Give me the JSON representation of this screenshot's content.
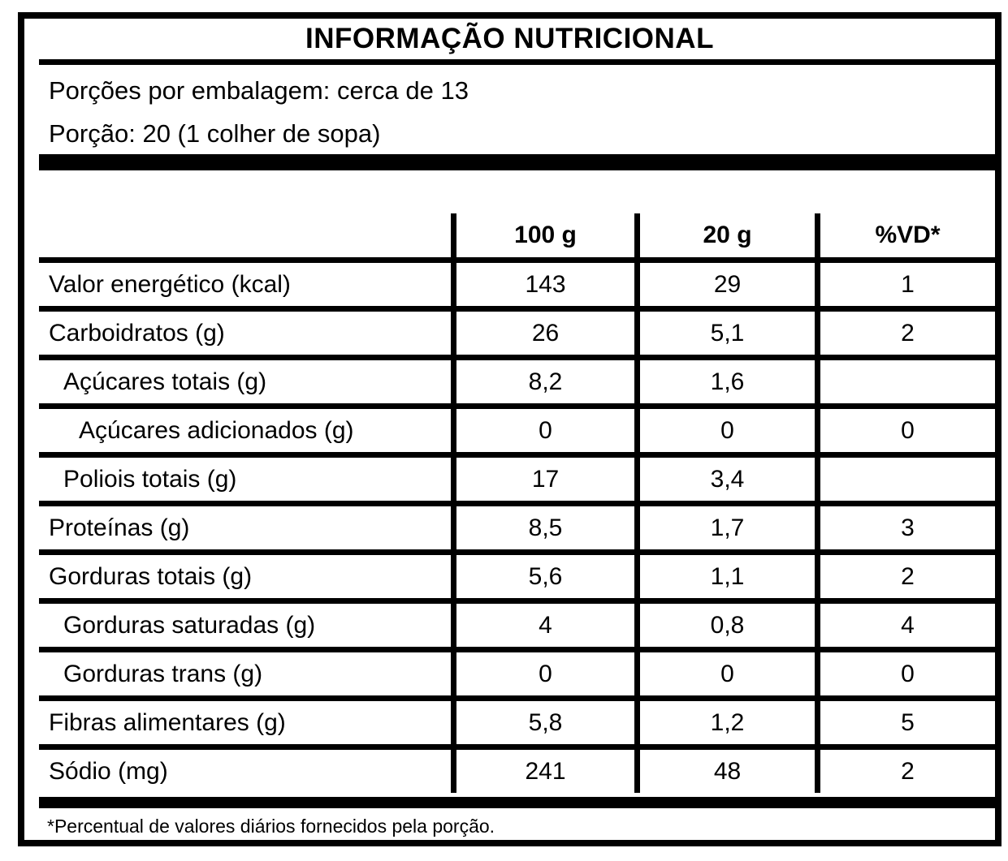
{
  "label": {
    "title": "INFORMAÇÃO NUTRICIONAL",
    "servings_line": "Porções por embalagem: cerca de 13",
    "portion_line": "Porção: 20 (1 colher de sopa)",
    "footnote": "*Percentual de valores diários fornecidos pela porção.",
    "columns": [
      "100 g",
      "20 g",
      "%VD*"
    ],
    "rows": [
      {
        "label": "Valor energético (kcal)",
        "per100": "143",
        "per20": "29",
        "vd": "1",
        "indent": 0
      },
      {
        "label": "Carboidratos (g)",
        "per100": "26",
        "per20": "5,1",
        "vd": "2",
        "indent": 0
      },
      {
        "label": "Açúcares totais (g)",
        "per100": "8,2",
        "per20": "1,6",
        "vd": "",
        "indent": 1
      },
      {
        "label": "Açúcares adicionados (g)",
        "per100": "0",
        "per20": "0",
        "vd": "0",
        "indent": 2
      },
      {
        "label": "Poliois totais (g)",
        "per100": "17",
        "per20": "3,4",
        "vd": "",
        "indent": 1
      },
      {
        "label": "Proteínas (g)",
        "per100": "8,5",
        "per20": "1,7",
        "vd": "3",
        "indent": 0
      },
      {
        "label": "Gorduras totais (g)",
        "per100": "5,6",
        "per20": "1,1",
        "vd": "2",
        "indent": 0
      },
      {
        "label": "Gorduras saturadas (g)",
        "per100": "4",
        "per20": "0,8",
        "vd": "4",
        "indent": 1
      },
      {
        "label": "Gorduras trans (g)",
        "per100": "0",
        "per20": "0",
        "vd": "0",
        "indent": 1
      },
      {
        "label": "Fibras alimentares (g)",
        "per100": "5,8",
        "per20": "1,2",
        "vd": "5",
        "indent": 0
      },
      {
        "label": "Sódio (mg)",
        "per100": "241",
        "per20": "48",
        "vd": "2",
        "indent": 0
      }
    ],
    "colors": {
      "text": "#000000",
      "background": "#ffffff",
      "border": "#000000"
    }
  }
}
